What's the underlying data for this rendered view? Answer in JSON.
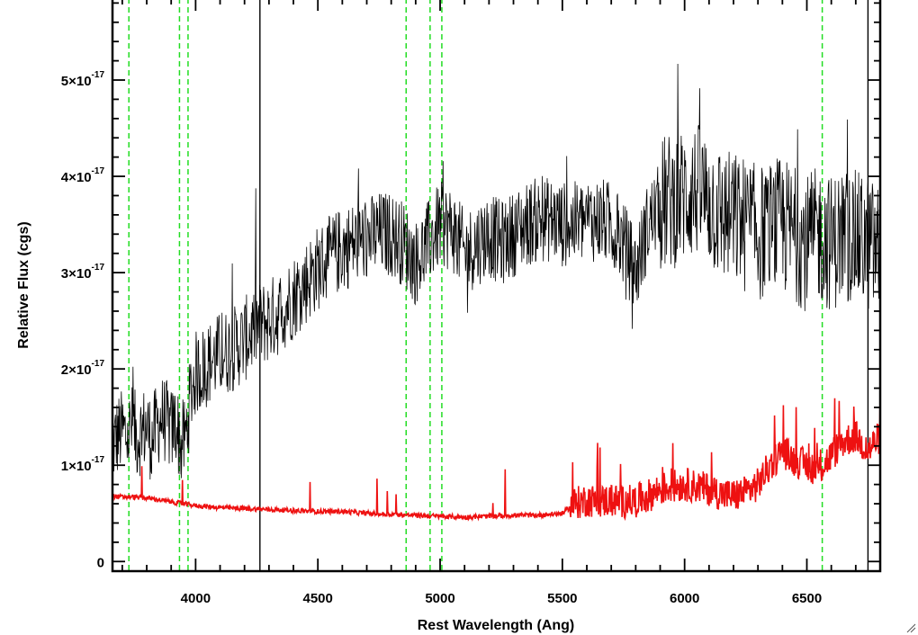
{
  "chart_data": {
    "type": "line",
    "xlabel": "Rest Wavelength (Ang)",
    "ylabel": "Relative Flux (cgs)",
    "xlim": [
      3660,
      6800
    ],
    "ylim": [
      -1e-18,
      5.85e-17
    ],
    "x_ticks": [
      {
        "value": 4000,
        "label": "4000"
      },
      {
        "value": 4500,
        "label": "4500"
      },
      {
        "value": 5000,
        "label": "5000"
      },
      {
        "value": 5500,
        "label": "5500"
      },
      {
        "value": 6000,
        "label": "6000"
      },
      {
        "value": 6500,
        "label": "6500"
      }
    ],
    "x_minor_step": 100,
    "y_ticks": [
      {
        "value": 0,
        "mant": "0",
        "exp": ""
      },
      {
        "value": 1e-17,
        "mant": "1×10",
        "exp": "-17"
      },
      {
        "value": 2e-17,
        "mant": "2×10",
        "exp": "-17"
      },
      {
        "value": 3e-17,
        "mant": "3×10",
        "exp": "-17"
      },
      {
        "value": 4e-17,
        "mant": "4×10",
        "exp": "-17"
      },
      {
        "value": 5e-17,
        "mant": "5×10",
        "exp": "-17"
      }
    ],
    "y_minor_step": 2e-18,
    "grid": false,
    "vlines": {
      "green_dashed": [
        3727,
        3934,
        3969,
        4861,
        4959,
        5007,
        6563
      ],
      "black_solid": [
        4263,
        6750
      ]
    },
    "series": [
      {
        "color": "#000000",
        "values_x": [
          3660,
          3680,
          3700,
          3720,
          3740,
          3760,
          3780,
          3800,
          3820,
          3840,
          3860,
          3880,
          3900,
          3920,
          3940,
          3960,
          3980,
          4000,
          4050,
          4100,
          4150,
          4200,
          4250,
          4300,
          4350,
          4400,
          4450,
          4500,
          4550,
          4600,
          4650,
          4700,
          4750,
          4800,
          4850,
          4900,
          4950,
          5000,
          5050,
          5100,
          5150,
          5200,
          5250,
          5300,
          5350,
          5400,
          5450,
          5500,
          5550,
          5600,
          5650,
          5700,
          5750,
          5800,
          5850,
          5900,
          5950,
          6000,
          6050,
          6100,
          6150,
          6200,
          6250,
          6300,
          6350,
          6400,
          6450,
          6500,
          6550,
          6600,
          6650,
          6700,
          6750,
          6800
        ],
        "values_y": [
          1.2e-17,
          1.3e-17,
          1.35e-17,
          1.3e-17,
          1.4e-17,
          1.3e-17,
          1.35e-17,
          1.4e-17,
          1.25e-17,
          1.4e-17,
          1.5e-17,
          1.45e-17,
          1.35e-17,
          1.45e-17,
          1.2e-17,
          1.3e-17,
          1.75e-17,
          1.95e-17,
          2.05e-17,
          2.15e-17,
          2.2e-17,
          2.3e-17,
          2.45e-17,
          2.5e-17,
          2.6e-17,
          2.75e-17,
          2.9e-17,
          3.05e-17,
          3.15e-17,
          3.25e-17,
          3.3e-17,
          3.35e-17,
          3.4e-17,
          3.4e-17,
          3.3e-17,
          3.1e-17,
          3.3e-17,
          3.5e-17,
          3.45e-17,
          3.2e-17,
          3.3e-17,
          3.4e-17,
          3.3e-17,
          3.4e-17,
          3.5e-17,
          3.55e-17,
          3.55e-17,
          3.5e-17,
          3.5e-17,
          3.55e-17,
          3.55e-17,
          3.5e-17,
          3.3e-17,
          3e-17,
          3.5e-17,
          3.7e-17,
          3.75e-17,
          3.8e-17,
          3.85e-17,
          3.75e-17,
          3.6e-17,
          3.55e-17,
          3.5e-17,
          3.4e-17,
          3.45e-17,
          3.5e-17,
          3.4e-17,
          3.3e-17,
          3.4e-17,
          3.3e-17,
          3.4e-17,
          3.35e-17,
          3.3e-17,
          3.2e-17
        ]
      },
      {
        "color": "#ee1111",
        "values_x": [
          3660,
          3700,
          3750,
          3800,
          3850,
          3900,
          3950,
          4000,
          4100,
          4200,
          4300,
          4400,
          4500,
          4600,
          4700,
          4800,
          4900,
          5000,
          5100,
          5200,
          5300,
          5400,
          5500,
          5550,
          5600,
          5650,
          5700,
          5750,
          5800,
          5850,
          5900,
          5950,
          6000,
          6050,
          6100,
          6150,
          6200,
          6250,
          6300,
          6350,
          6400,
          6450,
          6500,
          6550,
          6600,
          6650,
          6700,
          6750,
          6800
        ],
        "values_y": [
          6.8e-18,
          6.7e-18,
          6.7e-18,
          6.6e-18,
          6.4e-18,
          6.2e-18,
          6e-18,
          5.8e-18,
          5.6e-18,
          5.5e-18,
          5.4e-18,
          5.3e-18,
          5.2e-18,
          5.2e-18,
          5e-18,
          4.9e-18,
          4.8e-18,
          4.7e-18,
          4.6e-18,
          4.7e-18,
          4.8e-18,
          4.8e-18,
          5e-18,
          6e-18,
          6.4e-18,
          6.2e-18,
          6.4e-18,
          6.2e-18,
          6.3e-18,
          6.8e-18,
          7.5e-18,
          7.8e-18,
          8e-18,
          7.8e-18,
          7.5e-18,
          7e-18,
          6.8e-18,
          7.2e-18,
          8e-18,
          1e-17,
          1.15e-17,
          1.05e-17,
          1e-17,
          9.5e-18,
          1.1e-17,
          1.25e-17,
          1.3e-17,
          1.15e-17,
          1.3e-17
        ]
      }
    ]
  },
  "colors": {
    "spectrum": "#000000",
    "error": "#ee1111",
    "lines_green": "#22dd22",
    "lines_black": "#000000"
  }
}
